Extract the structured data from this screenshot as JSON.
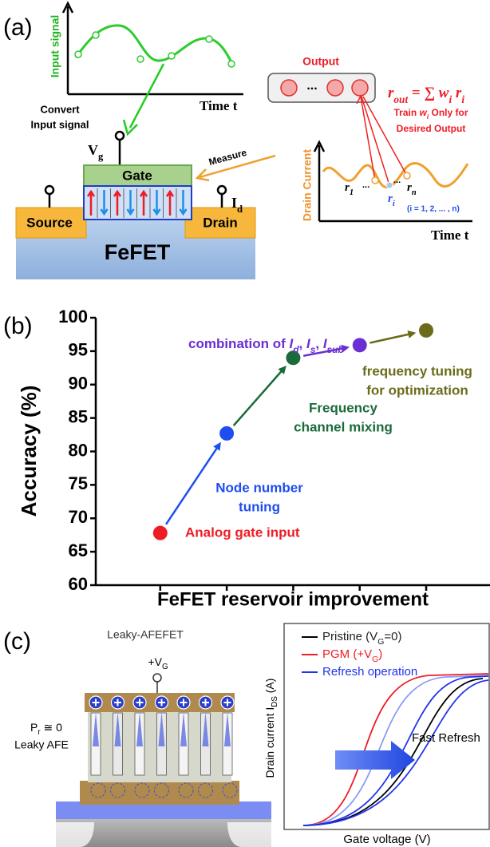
{
  "panel_a": {
    "label": "(a)",
    "input_axis_label": "Input signal",
    "input_time_label": "Time t",
    "convert_lines": [
      "Convert",
      "Input signal"
    ],
    "gate_voltage": [
      {
        "text": "V"
      },
      {
        "text": "g",
        "sub": true
      }
    ],
    "gate": "Gate",
    "measure": "Measure",
    "source": "Source",
    "device": "FeFET",
    "drain": "Drain",
    "drain_terminal": [
      {
        "text": "I"
      },
      {
        "text": "d",
        "sub": true
      }
    ],
    "output": "Output",
    "output_ellipsis": "...",
    "formula": [
      {
        "text": "r",
        "italic": true
      },
      {
        "text": "out",
        "sub": true,
        "italic": true
      },
      {
        "text": " = ∑ "
      },
      {
        "text": "w",
        "italic": true
      },
      {
        "text": "i",
        "sub": true,
        "italic": true
      },
      {
        "text": " r",
        "italic": true
      },
      {
        "text": "i",
        "sub": true,
        "italic": true
      }
    ],
    "train_lines": [
      [
        {
          "text": "Train "
        },
        {
          "text": "w",
          "italic": true
        },
        {
          "text": "i",
          "sub": true,
          "italic": true
        },
        {
          "text": " Only for"
        }
      ],
      [
        {
          "text": "Desired Output"
        }
      ]
    ],
    "drain_axis_label": "Drain Current",
    "r_first": [
      {
        "text": "r",
        "italic": true
      },
      {
        "text": "1",
        "sub": true,
        "italic": true
      }
    ],
    "r_ellipsis": "...",
    "r_i": [
      {
        "text": "r",
        "italic": true
      },
      {
        "text": "i",
        "sub": true,
        "italic": true
      }
    ],
    "r_n": [
      {
        "text": "r",
        "italic": true
      },
      {
        "text": "n",
        "sub": true,
        "italic": true
      }
    ],
    "index_note": "(i = 1, 2, ... , n)",
    "drain_time_label": "Time t"
  },
  "chart_data": {
    "type": "scatter",
    "label": "(b)",
    "ylabel": "Accuracy (%)",
    "xlabel": "FeFET reservoir improvement",
    "x": [
      1,
      2,
      3,
      4,
      5
    ],
    "values": [
      67.8,
      82.7,
      94,
      95.9,
      98.1
    ],
    "colors": [
      "#ee1c25",
      "#1f4ef0",
      "#1b6b3a",
      "#6a2fd3",
      "#6b6b1a"
    ],
    "xlim": [
      0.03,
      5.96
    ],
    "ylim": [
      60,
      100
    ],
    "yticks": [
      60,
      65,
      70,
      75,
      80,
      85,
      90,
      95,
      100
    ],
    "annotations": [
      {
        "color": "#ee1c25",
        "lines": [
          "Analog gate input"
        ]
      },
      {
        "color": "#1f4ef0",
        "lines": [
          "Node number",
          "tuning"
        ]
      },
      {
        "color": "#1b6b3a",
        "lines": [
          "Frequency",
          "channel mixing"
        ]
      },
      {
        "color": "#6a2fd3",
        "lines": [
          [
            {
              "text": "combination of "
            },
            {
              "text": "I",
              "italic": true
            },
            {
              "text": "d",
              "sub": true,
              "italic": true
            },
            {
              "text": ", "
            },
            {
              "text": "I",
              "italic": true
            },
            {
              "text": "s",
              "sub": true,
              "italic": true
            },
            {
              "text": ", "
            },
            {
              "text": "I",
              "italic": true
            },
            {
              "text": "sub",
              "sub": true,
              "italic": true
            }
          ]
        ]
      },
      {
        "color": "#6b6b1a",
        "lines": [
          "frequency tuning",
          "for optimization"
        ]
      }
    ]
  },
  "panel_c": {
    "label": "(c)",
    "device_title": "Leaky-AFEFET",
    "gate_voltage": [
      {
        "text": "+V"
      },
      {
        "text": "G",
        "sub": true
      }
    ],
    "remanence": [
      {
        "text": "P"
      },
      {
        "text": "r",
        "sub": true
      },
      {
        "text": " ≅ 0"
      }
    ],
    "layer": "Leaky AFE",
    "legend": [
      {
        "color": "#000000",
        "parts": [
          {
            "text": "Pristine (V"
          },
          {
            "text": "G",
            "sub": true
          },
          {
            "text": "=0)"
          }
        ]
      },
      {
        "color": "#ee1c25",
        "parts": [
          {
            "text": "PGM (+V"
          },
          {
            "text": "G",
            "sub": true
          },
          {
            "text": ")"
          }
        ]
      },
      {
        "color": "#2233ee",
        "parts": [
          {
            "text": "Refresh operation"
          }
        ]
      }
    ],
    "refresh_label": "Fast Refresh",
    "ylabel": [
      {
        "text": "Drain current I"
      },
      {
        "text": "DS",
        "sub": true
      },
      {
        "text": " (A)"
      }
    ],
    "xlabel": "Gate voltage (V)"
  }
}
